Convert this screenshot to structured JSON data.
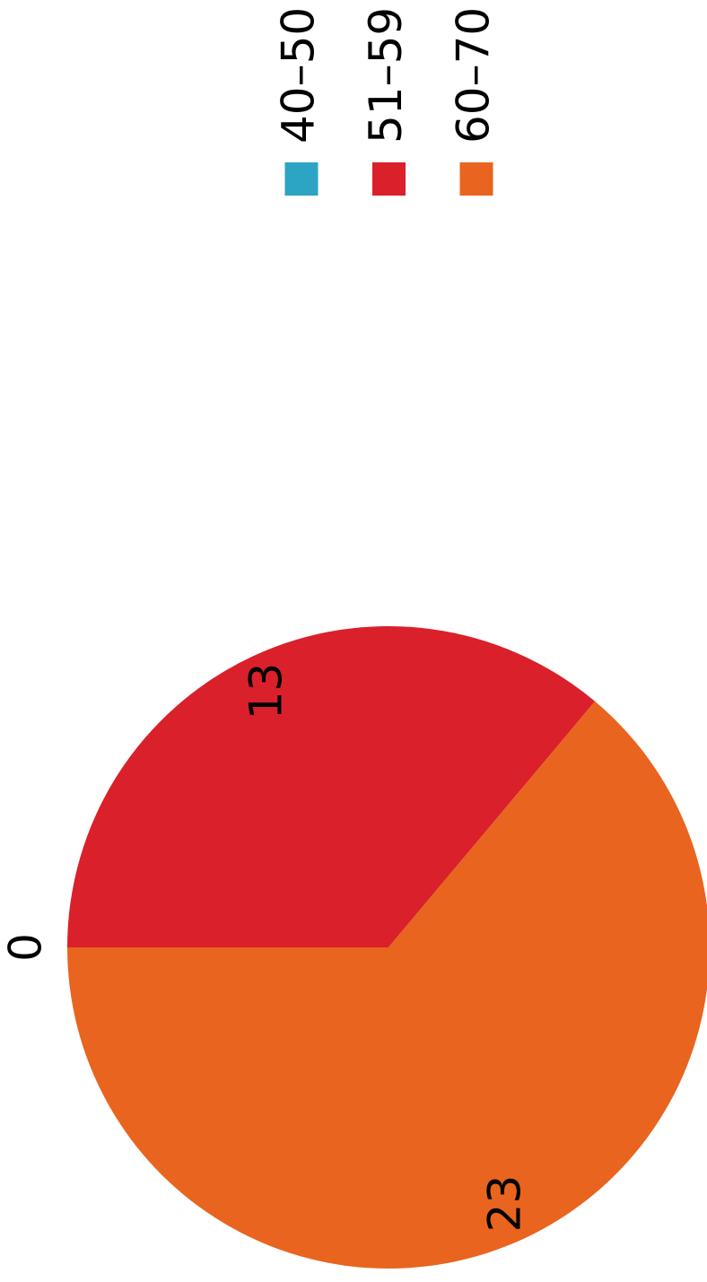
{
  "chart_data": {
    "type": "pie",
    "categories": [
      "40–50",
      "51–59",
      "60–70"
    ],
    "values": [
      0,
      13,
      23
    ],
    "colors": [
      "#2ca5c4",
      "#da202a",
      "#e9641e"
    ]
  }
}
